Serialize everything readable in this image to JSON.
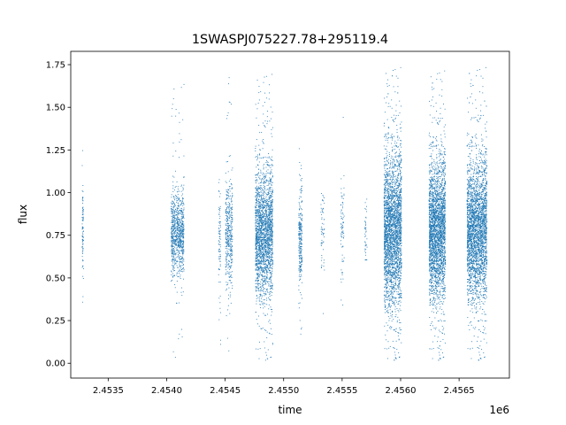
{
  "chart_data": {
    "type": "scatter",
    "title": "1SWASPJ075227.78+295119.4",
    "xlabel": "time",
    "ylabel": "flux",
    "x_offset_label": "1e6",
    "xlim": [
      2453180,
      2456930
    ],
    "ylim": [
      -0.087,
      1.828
    ],
    "x_ticks": [
      2453500,
      2454000,
      2454500,
      2455000,
      2455500,
      2456000,
      2456500
    ],
    "x_tick_labels": [
      "2.4535",
      "2.4540",
      "2.4545",
      "2.4550",
      "2.4555",
      "2.4560",
      "2.4565"
    ],
    "y_ticks": [
      0.0,
      0.25,
      0.5,
      0.75,
      1.0,
      1.25,
      1.5,
      1.75
    ],
    "y_tick_labels": [
      "0.00",
      "0.25",
      "0.50",
      "0.75",
      "1.00",
      "1.25",
      "1.50",
      "1.75"
    ],
    "grid": false,
    "marker_color": "#1f77b4",
    "clusters": [
      {
        "x_center": 2453280,
        "x_width": 12,
        "y_center": 0.76,
        "y_spread": 0.14,
        "y_min": 0.25,
        "y_max": 1.33,
        "count": 90
      },
      {
        "x_center": 2454090,
        "x_width": 110,
        "y_center": 0.76,
        "y_spread": 0.12,
        "y_min": 0.01,
        "y_max": 1.66,
        "count": 900
      },
      {
        "x_center": 2454450,
        "x_width": 18,
        "y_center": 0.74,
        "y_spread": 0.16,
        "y_min": 0.11,
        "y_max": 1.1,
        "count": 80
      },
      {
        "x_center": 2454530,
        "x_width": 60,
        "y_center": 0.75,
        "y_spread": 0.16,
        "y_min": 0.07,
        "y_max": 1.68,
        "count": 420
      },
      {
        "x_center": 2454830,
        "x_width": 150,
        "y_center": 0.76,
        "y_spread": 0.18,
        "y_min": 0.0,
        "y_max": 1.7,
        "count": 2200
      },
      {
        "x_center": 2455140,
        "x_width": 30,
        "y_center": 0.74,
        "y_spread": 0.15,
        "y_min": 0.11,
        "y_max": 1.33,
        "count": 260
      },
      {
        "x_center": 2455330,
        "x_width": 30,
        "y_center": 0.78,
        "y_spread": 0.14,
        "y_min": 0.28,
        "y_max": 1.0,
        "count": 60
      },
      {
        "x_center": 2455500,
        "x_width": 30,
        "y_center": 0.78,
        "y_spread": 0.14,
        "y_min": 0.33,
        "y_max": 1.48,
        "count": 80
      },
      {
        "x_center": 2455700,
        "x_width": 20,
        "y_center": 0.76,
        "y_spread": 0.1,
        "y_min": 0.57,
        "y_max": 0.98,
        "count": 40
      },
      {
        "x_center": 2455930,
        "x_width": 150,
        "y_center": 0.78,
        "y_spread": 0.22,
        "y_min": 0.0,
        "y_max": 1.74,
        "count": 3000
      },
      {
        "x_center": 2456310,
        "x_width": 140,
        "y_center": 0.78,
        "y_spread": 0.2,
        "y_min": 0.0,
        "y_max": 1.72,
        "count": 2800
      },
      {
        "x_center": 2456650,
        "x_width": 170,
        "y_center": 0.78,
        "y_spread": 0.2,
        "y_min": 0.0,
        "y_max": 1.74,
        "count": 3200
      }
    ]
  }
}
